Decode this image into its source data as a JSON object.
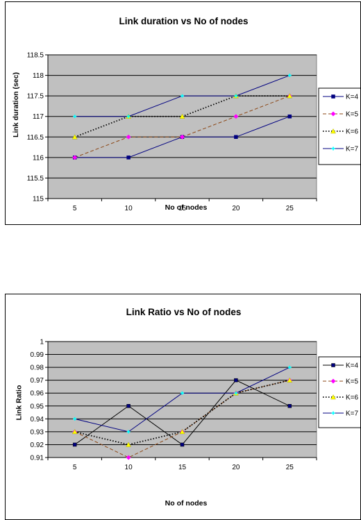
{
  "chart_data": [
    {
      "type": "line",
      "title": "Link duration vs No of nodes",
      "xlabel": "No of nodes",
      "ylabel": "Link duration (sec)",
      "categories": [
        "5",
        "10",
        "15",
        "20",
        "25"
      ],
      "ylim": [
        115,
        118.5
      ],
      "yticks": [
        "115",
        "115.5",
        "116",
        "116.5",
        "117",
        "117.5",
        "118",
        "118.5"
      ],
      "grid": true,
      "legend_position": "right",
      "plot_background": "#c0c0c0",
      "series": [
        {
          "name": "K=4",
          "values": [
            116,
            116,
            116.5,
            116.5,
            117
          ],
          "color": "#000080",
          "dash": "solid",
          "marker": "square"
        },
        {
          "name": "K=5",
          "values": [
            116,
            116.5,
            116.5,
            117,
            117.5
          ],
          "color": "#8B4513",
          "dash": "dashed",
          "marker": "diamond",
          "marker_color": "#ff00ff"
        },
        {
          "name": "K=6",
          "values": [
            116.5,
            117,
            117,
            117.5,
            117.5
          ],
          "color": "#000000",
          "dash": "dotted",
          "marker": "triangle",
          "marker_color": "#ffff00"
        },
        {
          "name": "K=7",
          "values": [
            117,
            117,
            117.5,
            117.5,
            118
          ],
          "color": "#000080",
          "dash": "solid",
          "marker": "cross",
          "marker_color": "#00ffff"
        }
      ]
    },
    {
      "type": "line",
      "title": "Link Ratio vs No of nodes",
      "xlabel": "No of nodes",
      "ylabel": "Link Ratio",
      "categories": [
        "5",
        "10",
        "15",
        "20",
        "25"
      ],
      "ylim": [
        0.91,
        1
      ],
      "yticks": [
        "0.91",
        "0.92",
        "0.93",
        "0.94",
        "0.95",
        "0.96",
        "0.97",
        "0.98",
        "0.99",
        "1"
      ],
      "grid": true,
      "legend_position": "right",
      "plot_background": "#c0c0c0",
      "series": [
        {
          "name": "K=4",
          "values": [
            0.92,
            0.95,
            0.92,
            0.97,
            0.95
          ],
          "color": "#000000",
          "dash": "solid",
          "marker": "square",
          "marker_color": "#000080"
        },
        {
          "name": "K=5",
          "values": [
            0.93,
            0.91,
            0.93,
            0.96,
            0.97
          ],
          "color": "#8B4513",
          "dash": "dashed",
          "marker": "diamond",
          "marker_color": "#ff00ff"
        },
        {
          "name": "K=6",
          "values": [
            0.93,
            0.92,
            0.93,
            0.96,
            0.97
          ],
          "color": "#000000",
          "dash": "dotted",
          "marker": "triangle",
          "marker_color": "#ffff00"
        },
        {
          "name": "K=7",
          "values": [
            0.94,
            0.93,
            0.96,
            0.96,
            0.98
          ],
          "color": "#000080",
          "dash": "solid",
          "marker": "cross",
          "marker_color": "#00ffff"
        }
      ]
    }
  ]
}
